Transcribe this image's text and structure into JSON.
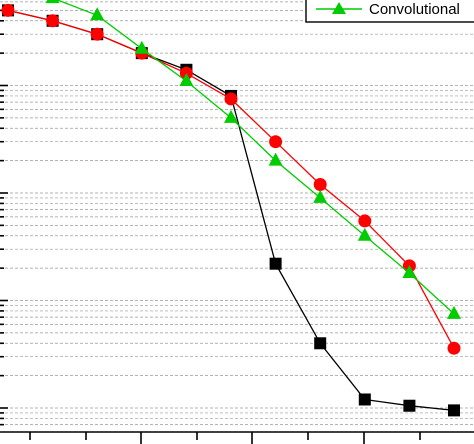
{
  "chart_data": {
    "type": "line",
    "y_scale": "log",
    "grid": true,
    "legend_position": "top-right",
    "x": [
      0,
      1,
      2,
      3,
      4,
      5,
      6,
      7,
      8,
      9,
      10
    ],
    "series": [
      {
        "name": "",
        "color": "#000000",
        "marker": "square",
        "values": [
          0.5,
          0.4,
          0.3,
          0.2,
          0.14,
          0.08,
          0.0022,
          0.0004,
          0.00012,
          0.000105,
          9.5e-05
        ]
      },
      {
        "name": "",
        "color": "#ff0000",
        "marker": "circle",
        "values": [
          0.5,
          0.4,
          0.3,
          0.2,
          0.13,
          0.075,
          0.03,
          0.012,
          0.0055,
          0.0021,
          0.00036
        ]
      },
      {
        "name": "Convolutional",
        "color": "#00cc00",
        "marker": "triangle",
        "values": [
          0.8,
          0.65,
          0.45,
          0.22,
          0.11,
          0.05,
          0.02,
          0.009,
          0.004,
          0.0018,
          0.00075
        ]
      }
    ]
  }
}
